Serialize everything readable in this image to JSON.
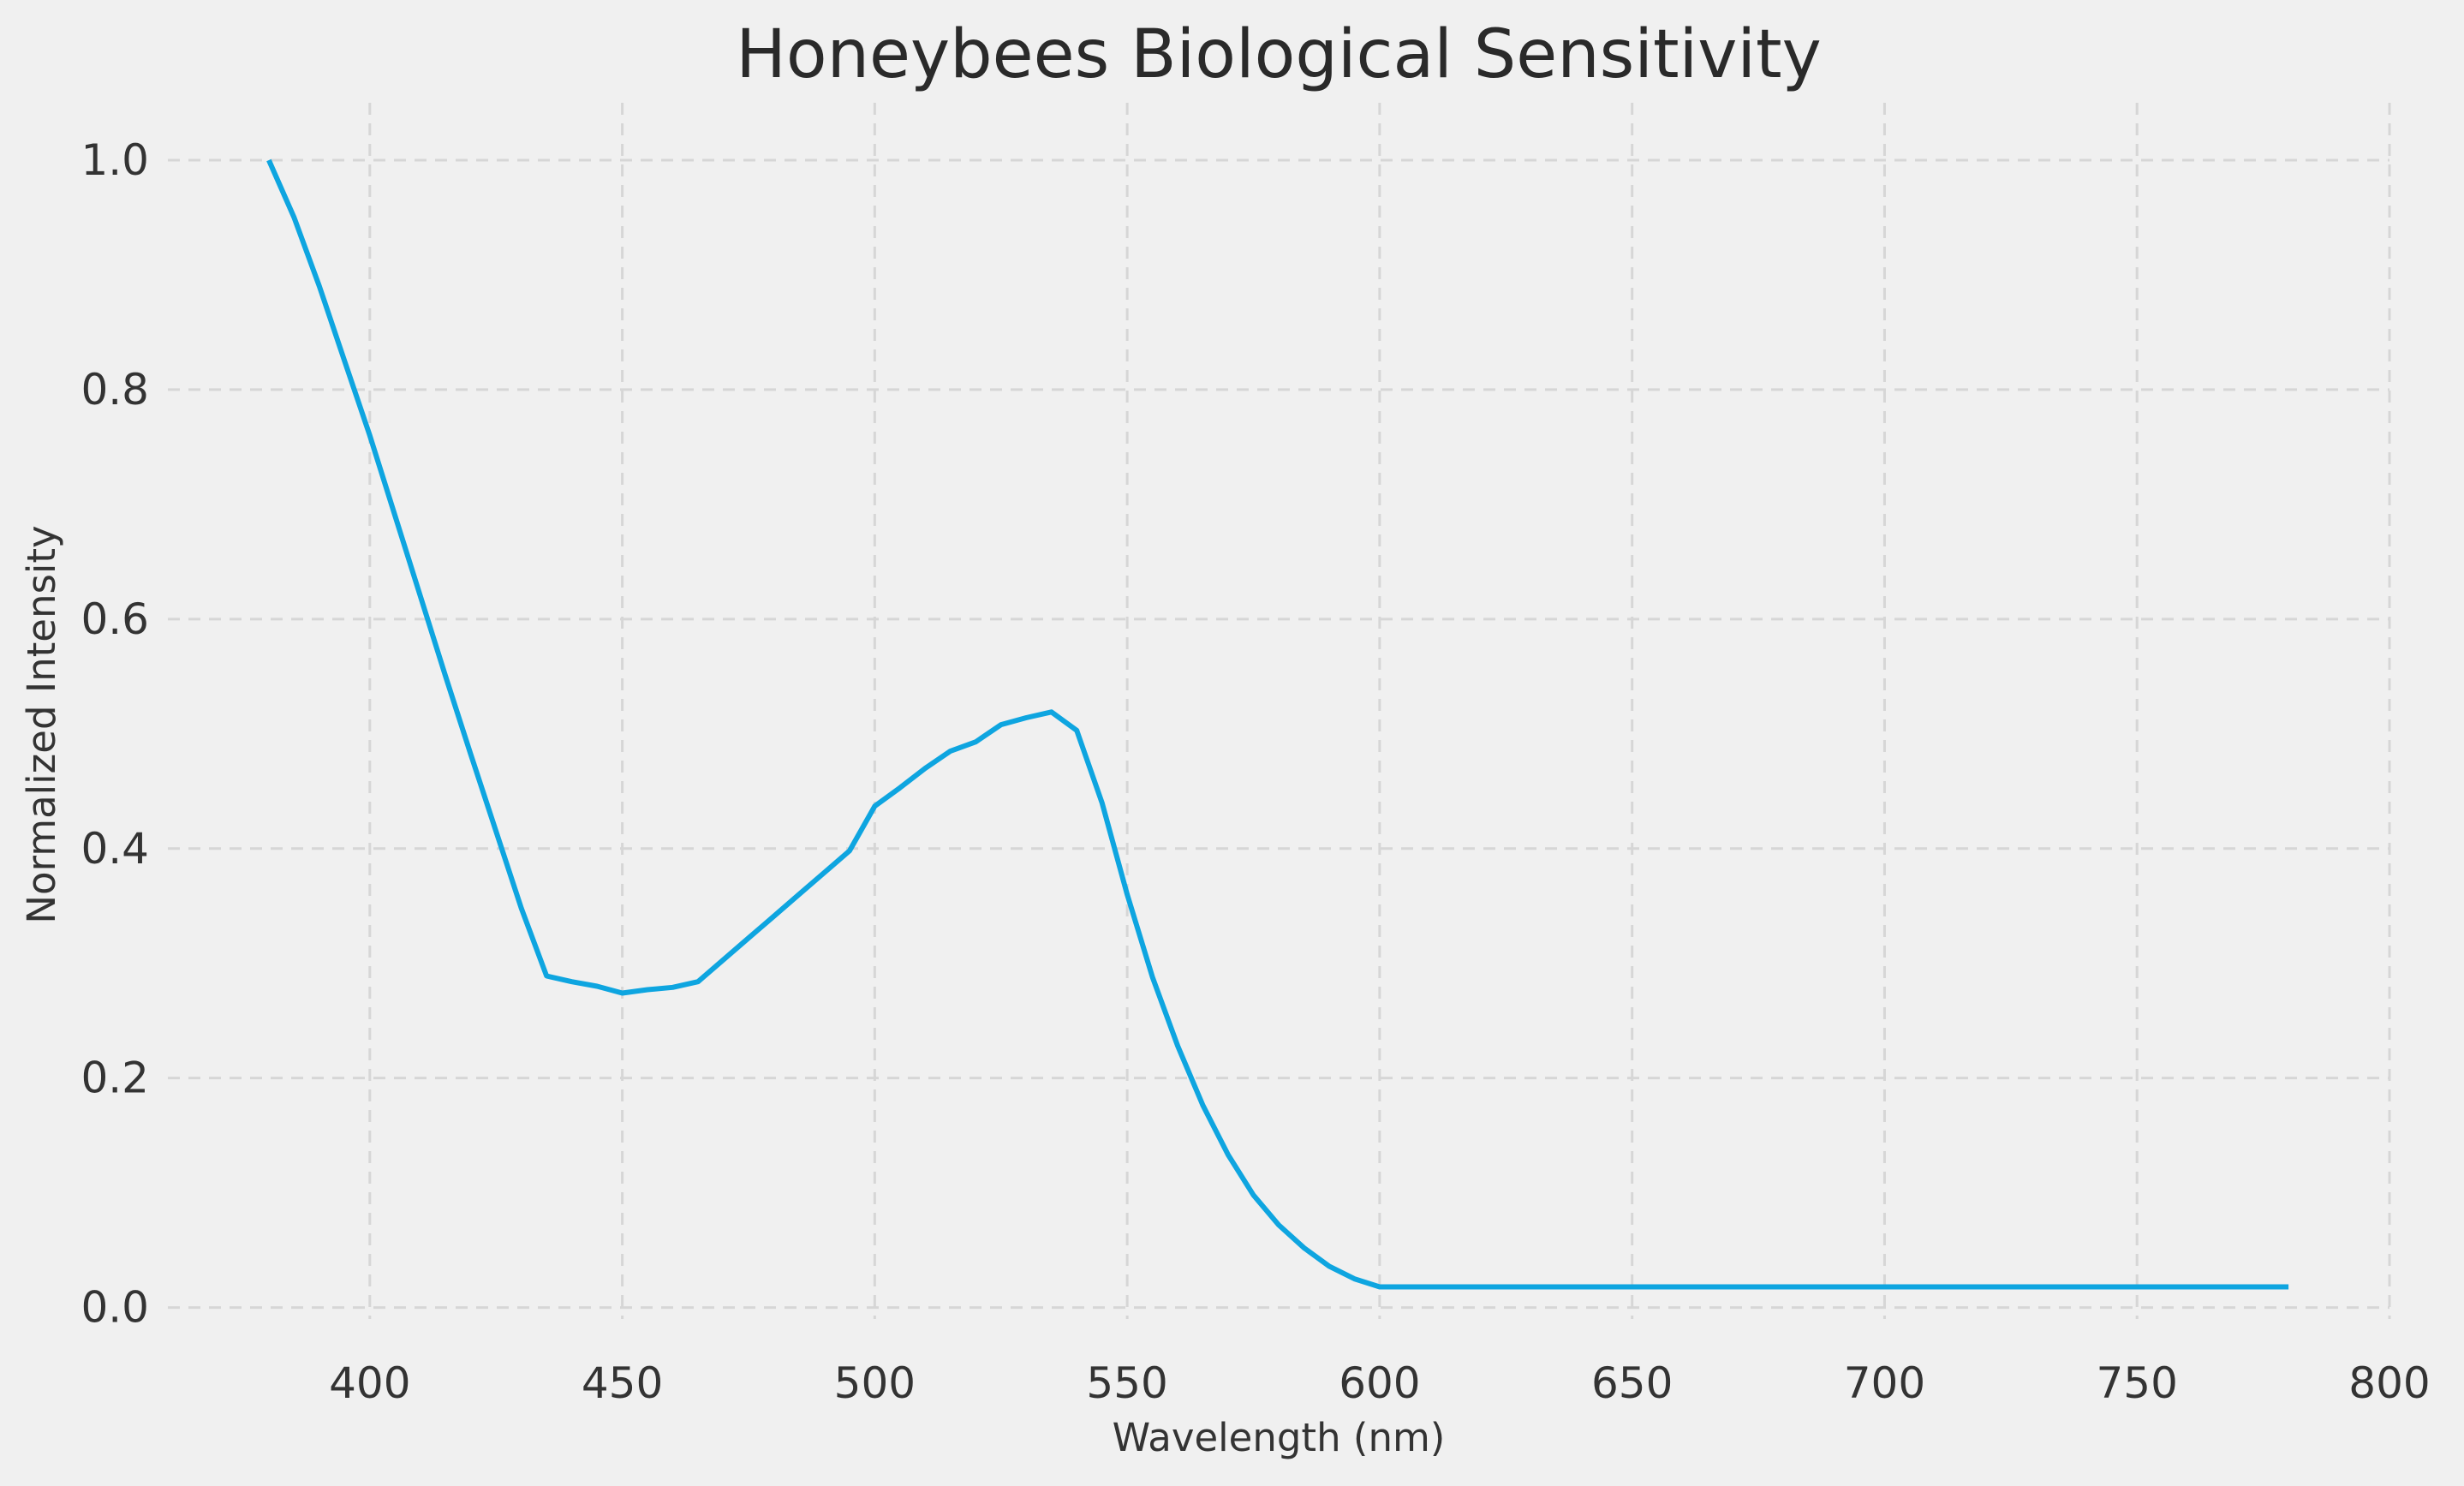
{
  "chart_data": {
    "type": "line",
    "title": "Honeybees Biological Sensitivity",
    "xlabel": "Wavelength (nm)",
    "ylabel": "Normalized Intensity",
    "xlim": [
      360,
      800
    ],
    "ylim": [
      -0.01,
      1.05
    ],
    "xticks": [
      400,
      450,
      500,
      550,
      600,
      650,
      700,
      750,
      800
    ],
    "xtick_labels": [
      "400",
      "450",
      "500",
      "550",
      "600",
      "650",
      "700",
      "750",
      "800"
    ],
    "yticks": [
      0.0,
      0.2,
      0.4,
      0.6,
      0.8,
      1.0
    ],
    "ytick_labels": [
      "0.0",
      "0.2",
      "0.4",
      "0.6",
      "0.8",
      "1.0"
    ],
    "grid": true,
    "legend": false,
    "colors": {
      "background": "#f0f0f0",
      "line": "#0ea5e0",
      "grid": "#d6d6d6",
      "text": "#333333"
    },
    "series": [
      {
        "x": [
          380,
          385,
          390,
          395,
          400,
          405,
          410,
          415,
          420,
          425,
          430,
          435,
          440,
          445,
          450,
          455,
          460,
          465,
          470,
          475,
          480,
          485,
          490,
          495,
          500,
          505,
          510,
          515,
          520,
          525,
          530,
          535,
          540,
          545,
          550,
          555,
          560,
          565,
          570,
          575,
          580,
          585,
          590,
          595,
          600,
          650,
          700,
          750,
          780
        ],
        "y": [
          1.0,
          0.95,
          0.89,
          0.825,
          0.76,
          0.69,
          0.62,
          0.55,
          0.482,
          0.415,
          0.348,
          0.289,
          0.284,
          0.28,
          0.274,
          0.277,
          0.279,
          0.284,
          0.303,
          0.322,
          0.341,
          0.36,
          0.379,
          0.398,
          0.437,
          0.453,
          0.47,
          0.485,
          0.493,
          0.508,
          0.514,
          0.519,
          0.503,
          0.44,
          0.36,
          0.288,
          0.228,
          0.176,
          0.133,
          0.098,
          0.072,
          0.052,
          0.036,
          0.025,
          0.018,
          0.018,
          0.018,
          0.018,
          0.018
        ]
      }
    ]
  }
}
